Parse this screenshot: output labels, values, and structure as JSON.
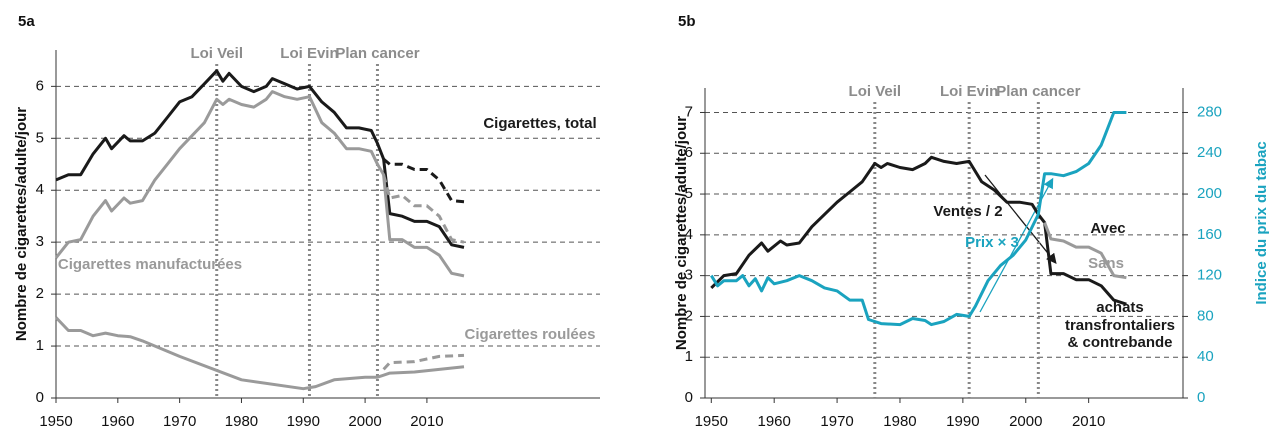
{
  "chart_data": [
    {
      "type": "line",
      "title": "5a",
      "ylabel": "Nombre de cigarettes/adulte/jour",
      "xlim": [
        1950,
        2038
      ],
      "xticks": [
        1950,
        1960,
        1970,
        1980,
        1990,
        2000,
        2010
      ],
      "ylim": [
        0,
        6.7
      ],
      "yticks": [
        0,
        1,
        2,
        3,
        4,
        5,
        6
      ],
      "grid": true,
      "events": [
        {
          "x": 1976,
          "label": "Loi Veil"
        },
        {
          "x": 1991,
          "label": "Loi Evin"
        },
        {
          "x": 2002,
          "label": "Plan cancer"
        }
      ],
      "annotations": [
        "Cigarettes, total",
        "Cigarettes manufacturées",
        "Cigarettes roulées"
      ],
      "series": [
        {
          "color": "#1a1a1a",
          "dashed": false,
          "x": [
            1950,
            1952,
            1954,
            1956,
            1958,
            1959,
            1961,
            1962,
            1964,
            1966,
            1968,
            1970,
            1972,
            1974,
            1976,
            1977,
            1978,
            1980,
            1982,
            1984,
            1985,
            1987,
            1989,
            1991,
            1993,
            1995,
            1997,
            1999,
            2001,
            2002,
            2003,
            2004,
            2006,
            2008,
            2010,
            2012,
            2014,
            2016
          ],
          "values": [
            4.2,
            4.3,
            4.3,
            4.7,
            5.0,
            4.8,
            5.05,
            4.95,
            4.95,
            5.1,
            5.4,
            5.7,
            5.8,
            6.05,
            6.3,
            6.1,
            6.25,
            6.0,
            5.9,
            6.0,
            6.15,
            6.05,
            5.95,
            6.0,
            5.7,
            5.5,
            5.2,
            5.2,
            5.15,
            4.9,
            4.6,
            3.55,
            3.5,
            3.4,
            3.4,
            3.3,
            2.95,
            2.9
          ]
        },
        {
          "color": "#1a1a1a",
          "dashed": true,
          "x": [
            2003,
            2004,
            2006,
            2008,
            2010,
            2012,
            2014,
            2016
          ],
          "values": [
            4.6,
            4.5,
            4.5,
            4.4,
            4.4,
            4.2,
            3.8,
            3.78
          ]
        },
        {
          "color": "#9a9a9a",
          "dashed": false,
          "x": [
            1950,
            1952,
            1954,
            1956,
            1958,
            1959,
            1961,
            1962,
            1964,
            1966,
            1968,
            1970,
            1972,
            1974,
            1976,
            1977,
            1978,
            1980,
            1982,
            1984,
            1985,
            1987,
            1989,
            1991,
            1993,
            1995,
            1997,
            1999,
            2001,
            2002,
            2003,
            2004,
            2006,
            2008,
            2010,
            2012,
            2014,
            2016
          ],
          "values": [
            2.7,
            3.0,
            3.05,
            3.5,
            3.8,
            3.6,
            3.85,
            3.75,
            3.8,
            4.2,
            4.5,
            4.8,
            5.05,
            5.3,
            5.75,
            5.65,
            5.75,
            5.65,
            5.6,
            5.75,
            5.9,
            5.8,
            5.75,
            5.8,
            5.3,
            5.1,
            4.8,
            4.8,
            4.75,
            4.5,
            4.3,
            3.05,
            3.05,
            2.9,
            2.9,
            2.75,
            2.4,
            2.35
          ]
        },
        {
          "color": "#9a9a9a",
          "dashed": true,
          "x": [
            2003,
            2004,
            2006,
            2008,
            2010,
            2012,
            2014,
            2016
          ],
          "values": [
            4.3,
            3.85,
            3.9,
            3.7,
            3.7,
            3.5,
            3.05,
            3.0
          ]
        },
        {
          "color": "#9a9a9a",
          "dashed": false,
          "x": [
            1950,
            1952,
            1954,
            1956,
            1958,
            1960,
            1962,
            1964,
            1970,
            1980,
            1990,
            1992,
            1995,
            2000,
            2002,
            2004,
            2008,
            2012,
            2016
          ],
          "values": [
            1.55,
            1.3,
            1.3,
            1.2,
            1.25,
            1.2,
            1.18,
            1.1,
            0.8,
            0.35,
            0.18,
            0.22,
            0.35,
            0.4,
            0.4,
            0.48,
            0.5,
            0.55,
            0.6
          ]
        },
        {
          "color": "#9a9a9a",
          "dashed": true,
          "x": [
            2003,
            2004,
            2008,
            2012,
            2016
          ],
          "values": [
            0.55,
            0.68,
            0.7,
            0.8,
            0.82
          ]
        }
      ]
    },
    {
      "type": "line",
      "title": "5b",
      "ylabel": "Nombre de cigarettes/adulte/jour",
      "y2label": "Indice du prix du tabac",
      "xlim": [
        1949,
        2025
      ],
      "xticks": [
        1950,
        1960,
        1970,
        1980,
        1990,
        2000,
        2010
      ],
      "ylim": [
        0,
        7.6
      ],
      "yticks": [
        0,
        1,
        2,
        3,
        4,
        5,
        6,
        7
      ],
      "y2lim": [
        0,
        304
      ],
      "y2ticks": [
        0,
        40,
        80,
        120,
        160,
        200,
        240,
        280
      ],
      "y2color": "#1aa3bf",
      "grid": true,
      "events": [
        {
          "x": 1976,
          "label": "Loi Veil"
        },
        {
          "x": 1991,
          "label": "Loi Evin"
        },
        {
          "x": 2002,
          "label": "Plan cancer"
        }
      ],
      "annotations": [
        "Ventes / 2",
        "Prix × 3",
        "Avec",
        "Sans",
        "achats",
        "transfrontaliers",
        "& contrebande"
      ],
      "series": [
        {
          "color": "#1a1a1a",
          "dashed": false,
          "x": [
            1950,
            1952,
            1954,
            1956,
            1958,
            1959,
            1961,
            1962,
            1964,
            1966,
            1968,
            1970,
            1972,
            1974,
            1976,
            1977,
            1978,
            1980,
            1982,
            1984,
            1985,
            1987,
            1989,
            1991,
            1993,
            1995,
            1997,
            1999,
            2001,
            2002,
            2003,
            2004,
            2006,
            2008,
            2010,
            2012,
            2014,
            2016
          ],
          "values": [
            2.7,
            3.0,
            3.05,
            3.5,
            3.8,
            3.6,
            3.85,
            3.75,
            3.8,
            4.2,
            4.5,
            4.8,
            5.05,
            5.3,
            5.75,
            5.65,
            5.75,
            5.65,
            5.6,
            5.75,
            5.9,
            5.8,
            5.75,
            5.8,
            5.3,
            5.1,
            4.8,
            4.8,
            4.75,
            4.5,
            4.3,
            3.05,
            3.05,
            2.9,
            2.9,
            2.75,
            2.4,
            2.3
          ]
        },
        {
          "color": "#9a9a9a",
          "dashed": false,
          "x": [
            2003,
            2004,
            2006,
            2008,
            2010,
            2012,
            2014,
            2016
          ],
          "values": [
            4.3,
            3.9,
            3.85,
            3.7,
            3.7,
            3.55,
            3.0,
            2.95
          ]
        },
        {
          "color": "#1aa3bf",
          "dashed": false,
          "axis": "y2",
          "x": [
            1950,
            1951,
            1952,
            1954,
            1955,
            1956,
            1957,
            1958,
            1959,
            1960,
            1962,
            1964,
            1966,
            1968,
            1970,
            1972,
            1974,
            1975,
            1977,
            1980,
            1982,
            1984,
            1985,
            1987,
            1989,
            1991,
            1992,
            1994,
            1996,
            1998,
            2000,
            2002,
            2003,
            2004,
            2006,
            2008,
            2010,
            2012,
            2014,
            2016
          ],
          "values": [
            120,
            110,
            115,
            115,
            120,
            110,
            117,
            105,
            118,
            112,
            115,
            120,
            115,
            108,
            105,
            96,
            96,
            77,
            73,
            72,
            78,
            76,
            72,
            75,
            82,
            80,
            90,
            115,
            130,
            140,
            155,
            180,
            220,
            220,
            218,
            222,
            230,
            248,
            280,
            280
          ]
        }
      ]
    }
  ]
}
